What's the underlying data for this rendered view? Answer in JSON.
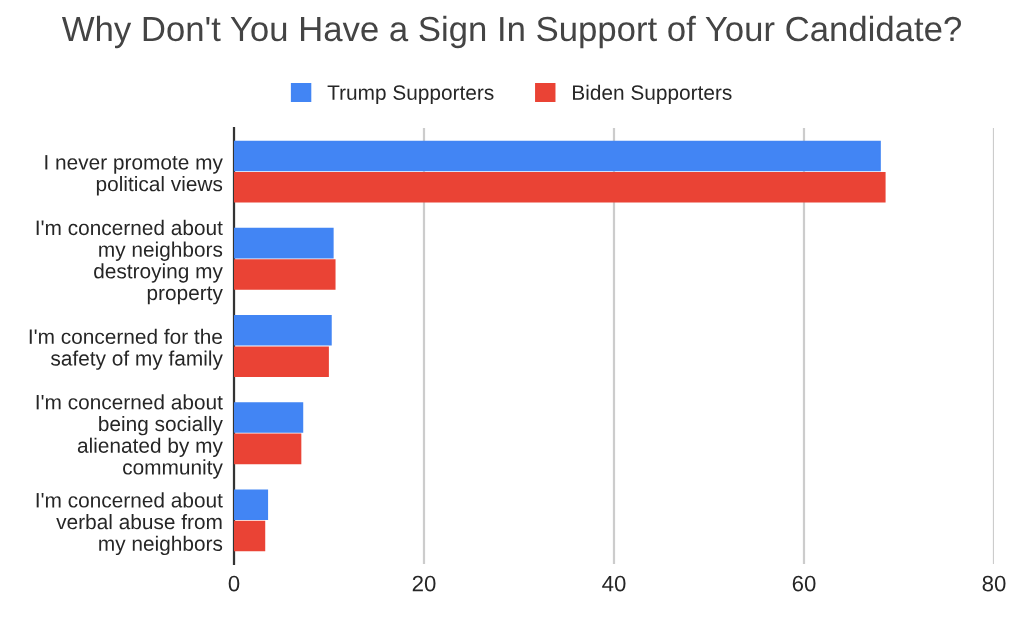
{
  "chart_data": {
    "type": "bar",
    "orientation": "horizontal",
    "title": "Why Don't You Have a Sign In Support of Your Candidate?",
    "categories": [
      "I never promote my\npolitical views",
      "I'm concerned about\nmy neighbors\ndestroying my\nproperty",
      "I'm concerned for the\nsafety of my family",
      "I'm concerned about\nbeing socially\nalienated by my\ncommunity",
      "I'm concerned about\nverbal abuse from\nmy neighbors"
    ],
    "series": [
      {
        "name": "Trump Supporters",
        "color": "#4285f4",
        "values": [
          68.0,
          10.4,
          10.2,
          7.2,
          3.5
        ]
      },
      {
        "name": "Biden Supporters",
        "color": "#ea4335",
        "values": [
          68.5,
          10.6,
          9.9,
          7.0,
          3.2
        ]
      }
    ],
    "xlim": [
      0,
      80
    ],
    "xticks": [
      0,
      20,
      40,
      60,
      80
    ],
    "grid": "x",
    "legend": "top"
  }
}
